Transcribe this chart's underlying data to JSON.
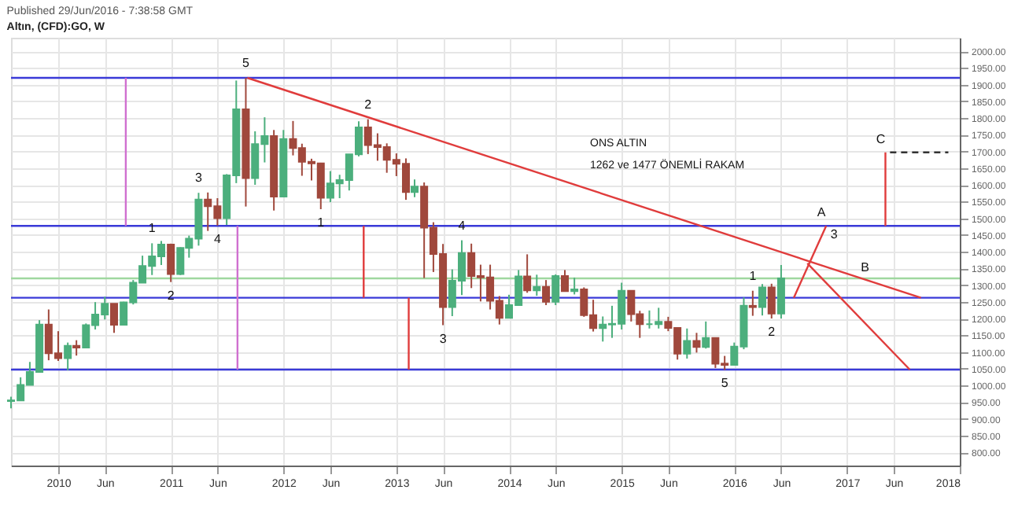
{
  "chart_data": {
    "type": "candlestick",
    "title": "Published 29/Jun/2016 - 7:38:58 GMT",
    "subtitle": "Altın, (CFD):GO, W",
    "x": [
      "2009-08",
      "2009-09",
      "2009-10",
      "2009-11",
      "2009-12",
      "2010-01",
      "2010-02",
      "2010-03",
      "2010-04",
      "2010-05",
      "2010-06",
      "2010-07",
      "2010-08",
      "2010-09",
      "2010-10",
      "2010-11",
      "2010-12",
      "2011-01",
      "2011-02",
      "2011-03",
      "2011-04",
      "2011-05",
      "2011-06",
      "2011-07",
      "2011-08",
      "2011-09",
      "2011-10",
      "2011-11",
      "2011-12",
      "2012-01",
      "2012-02",
      "2012-03",
      "2012-04",
      "2012-05",
      "2012-06",
      "2012-07",
      "2012-08",
      "2012-09",
      "2012-10",
      "2012-11",
      "2012-12",
      "2013-01",
      "2013-02",
      "2013-03",
      "2013-04",
      "2013-05",
      "2013-06",
      "2013-07",
      "2013-08",
      "2013-09",
      "2013-10",
      "2013-11",
      "2013-12",
      "2014-01",
      "2014-02",
      "2014-03",
      "2014-04",
      "2014-05",
      "2014-06",
      "2014-07",
      "2014-08",
      "2014-09",
      "2014-10",
      "2014-11",
      "2014-12",
      "2015-01",
      "2015-02",
      "2015-03",
      "2015-04",
      "2015-05",
      "2015-06",
      "2015-07",
      "2015-08",
      "2015-09",
      "2015-10",
      "2015-11",
      "2015-12",
      "2016-01",
      "2016-02",
      "2016-03",
      "2016-04",
      "2016-05",
      "2016-06"
    ],
    "ohlc": [
      [
        953,
        966,
        931,
        955
      ],
      [
        955,
        1024,
        954,
        1001
      ],
      [
        1001,
        1070,
        1001,
        1040
      ],
      [
        1040,
        1195,
        1040,
        1182
      ],
      [
        1182,
        1227,
        1075,
        1096
      ],
      [
        1096,
        1162,
        1073,
        1081
      ],
      [
        1081,
        1128,
        1045,
        1118
      ],
      [
        1118,
        1135,
        1089,
        1113
      ],
      [
        1113,
        1185,
        1113,
        1180
      ],
      [
        1180,
        1249,
        1167,
        1212
      ],
      [
        1212,
        1265,
        1197,
        1244
      ],
      [
        1244,
        1244,
        1157,
        1181
      ],
      [
        1181,
        1250,
        1181,
        1248
      ],
      [
        1248,
        1315,
        1242,
        1307
      ],
      [
        1307,
        1388,
        1306,
        1357
      ],
      [
        1357,
        1425,
        1330,
        1386
      ],
      [
        1386,
        1432,
        1360,
        1421
      ],
      [
        1421,
        1424,
        1309,
        1333
      ],
      [
        1333,
        1413,
        1330,
        1411
      ],
      [
        1411,
        1448,
        1382,
        1439
      ],
      [
        1439,
        1576,
        1418,
        1556
      ],
      [
        1556,
        1577,
        1462,
        1536
      ],
      [
        1536,
        1560,
        1478,
        1500
      ],
      [
        1500,
        1632,
        1480,
        1628
      ],
      [
        1628,
        1912,
        1605,
        1826
      ],
      [
        1826,
        1920,
        1535,
        1620
      ],
      [
        1620,
        1760,
        1600,
        1722
      ],
      [
        1722,
        1802,
        1667,
        1746
      ],
      [
        1746,
        1764,
        1523,
        1565
      ],
      [
        1565,
        1764,
        1565,
        1737
      ],
      [
        1737,
        1791,
        1688,
        1710
      ],
      [
        1710,
        1723,
        1627,
        1669
      ],
      [
        1669,
        1678,
        1613,
        1664
      ],
      [
        1664,
        1666,
        1527,
        1561
      ],
      [
        1561,
        1641,
        1548,
        1604
      ],
      [
        1604,
        1630,
        1560,
        1614
      ],
      [
        1614,
        1692,
        1583,
        1691
      ],
      [
        1691,
        1790,
        1685,
        1772
      ],
      [
        1772,
        1796,
        1692,
        1719
      ],
      [
        1719,
        1754,
        1672,
        1713
      ],
      [
        1713,
        1724,
        1636,
        1675
      ],
      [
        1675,
        1694,
        1626,
        1663
      ],
      [
        1663,
        1679,
        1555,
        1578
      ],
      [
        1578,
        1616,
        1563,
        1595
      ],
      [
        1595,
        1607,
        1321,
        1472
      ],
      [
        1472,
        1488,
        1339,
        1393
      ],
      [
        1393,
        1423,
        1180,
        1234
      ],
      [
        1234,
        1347,
        1207,
        1313
      ],
      [
        1313,
        1434,
        1270,
        1396
      ],
      [
        1396,
        1424,
        1291,
        1327
      ],
      [
        1327,
        1361,
        1251,
        1323
      ],
      [
        1323,
        1361,
        1227,
        1253
      ],
      [
        1253,
        1267,
        1182,
        1202
      ],
      [
        1202,
        1271,
        1202,
        1240
      ],
      [
        1240,
        1345,
        1240,
        1326
      ],
      [
        1326,
        1392,
        1277,
        1284
      ],
      [
        1284,
        1331,
        1268,
        1295
      ],
      [
        1295,
        1315,
        1240,
        1250
      ],
      [
        1250,
        1332,
        1240,
        1327
      ],
      [
        1327,
        1345,
        1280,
        1282
      ],
      [
        1282,
        1322,
        1272,
        1287
      ],
      [
        1287,
        1293,
        1205,
        1210
      ],
      [
        1210,
        1256,
        1161,
        1171
      ],
      [
        1171,
        1206,
        1131,
        1182
      ],
      [
        1182,
        1238,
        1142,
        1184
      ],
      [
        1184,
        1307,
        1167,
        1283
      ],
      [
        1283,
        1284,
        1191,
        1213
      ],
      [
        1213,
        1223,
        1142,
        1183
      ],
      [
        1183,
        1224,
        1170,
        1183
      ],
      [
        1183,
        1232,
        1170,
        1190
      ],
      [
        1190,
        1205,
        1162,
        1172
      ],
      [
        1172,
        1174,
        1077,
        1095
      ],
      [
        1095,
        1170,
        1080,
        1133
      ],
      [
        1133,
        1157,
        1098,
        1115
      ],
      [
        1115,
        1191,
        1110,
        1142
      ],
      [
        1142,
        1142,
        1052,
        1065
      ],
      [
        1065,
        1088,
        1046,
        1061
      ],
      [
        1061,
        1128,
        1060,
        1116
      ],
      [
        1116,
        1263,
        1108,
        1238
      ],
      [
        1238,
        1283,
        1208,
        1234
      ],
      [
        1234,
        1303,
        1209,
        1293
      ],
      [
        1293,
        1304,
        1200,
        1215
      ],
      [
        1215,
        1360,
        1200,
        1320
      ]
    ],
    "colors": [
      "#4caf7d",
      "#4caf7d",
      "#4caf7d",
      "#4caf7d",
      "#a0483c",
      "#a0483c",
      "#4caf7d",
      "#a0483c",
      "#4caf7d",
      "#4caf7d",
      "#4caf7d",
      "#a0483c",
      "#4caf7d",
      "#4caf7d",
      "#4caf7d",
      "#4caf7d",
      "#4caf7d",
      "#a0483c",
      "#4caf7d",
      "#4caf7d",
      "#4caf7d",
      "#a0483c",
      "#a0483c",
      "#4caf7d",
      "#4caf7d",
      "#a0483c",
      "#4caf7d",
      "#4caf7d",
      "#a0483c",
      "#4caf7d",
      "#a0483c",
      "#a0483c",
      "#a0483c",
      "#a0483c",
      "#4caf7d",
      "#4caf7d",
      "#4caf7d",
      "#4caf7d",
      "#a0483c",
      "#a0483c",
      "#a0483c",
      "#a0483c",
      "#a0483c",
      "#4caf7d",
      "#a0483c",
      "#a0483c",
      "#a0483c",
      "#4caf7d",
      "#4caf7d",
      "#a0483c",
      "#a0483c",
      "#a0483c",
      "#a0483c",
      "#4caf7d",
      "#4caf7d",
      "#a0483c",
      "#4caf7d",
      "#a0483c",
      "#4caf7d",
      "#a0483c",
      "#4caf7d",
      "#a0483c",
      "#a0483c",
      "#4caf7d",
      "#4caf7d",
      "#4caf7d",
      "#a0483c",
      "#a0483c",
      "#4caf7d",
      "#4caf7d",
      "#a0483c",
      "#a0483c",
      "#4caf7d",
      "#a0483c",
      "#4caf7d",
      "#a0483c",
      "#a0483c",
      "#4caf7d",
      "#4caf7d",
      "#a0483c",
      "#4caf7d",
      "#a0483c",
      "#4caf7d"
    ],
    "series": [
      {
        "type": "line",
        "color": "#e03c3c",
        "line_style": "solid",
        "x": [
          "2011-09-06",
          "2017-08-28"
        ],
        "values": [
          1920,
          1262
        ]
      },
      {
        "type": "line",
        "color": "#e03c3c",
        "line_style": "solid",
        "x": [
          "2016-07-12",
          "2016-10-25"
        ],
        "values": [
          1262,
          1477
        ]
      },
      {
        "type": "line",
        "color": "#e03c3c",
        "line_style": "solid",
        "x": [
          "2016-08-25",
          "2017-07-23"
        ],
        "values": [
          1365,
          1047
        ]
      },
      {
        "type": "line",
        "color": "#d070d0",
        "line_style": "solid",
        "x": [
          "2010-08-08",
          "2010-08-08"
        ],
        "values": [
          1920,
          1477
        ]
      },
      {
        "type": "line",
        "color": "#d070d0",
        "line_style": "solid",
        "x": [
          "2011-08-05",
          "2011-08-05"
        ],
        "values": [
          1477,
          1047
        ]
      },
      {
        "type": "line",
        "color": "#e03c3c",
        "line_style": "solid",
        "x": [
          "2012-09-17",
          "2012-09-17"
        ],
        "values": [
          1477,
          1262
        ]
      },
      {
        "type": "line",
        "color": "#e03c3c",
        "line_style": "solid",
        "x": [
          "2013-02-10",
          "2013-02-10"
        ],
        "values": [
          1262,
          1047
        ]
      },
      {
        "type": "line",
        "color": "#e03c3c",
        "line_style": "solid",
        "x": [
          "2017-05-05",
          "2017-05-05"
        ],
        "values": [
          1697,
          1477
        ]
      },
      {
        "type": "line",
        "color": "#333333",
        "line_style": "dashed",
        "x": [
          "2017-05-20",
          "2017-11-25"
        ],
        "values": [
          1697,
          1697
        ]
      }
    ],
    "ref_lines": [
      {
        "axis": "y",
        "value": 1920,
        "color": "#3a3ad8"
      },
      {
        "axis": "y",
        "value": 1477,
        "color": "#3a3ad8"
      },
      {
        "axis": "y",
        "value": 1262,
        "color": "#3a3ad8"
      },
      {
        "axis": "y",
        "value": 1047,
        "color": "#3a3ad8"
      },
      {
        "axis": "y",
        "value": 1320,
        "color": "#9fd89f"
      }
    ],
    "annotations": [
      {
        "text": "5",
        "x": "2011-09",
        "y": 1920
      },
      {
        "text": "2",
        "x": "2012-10",
        "y": 1796
      },
      {
        "text": "3",
        "x": "2011-04",
        "y": 1576
      },
      {
        "text": "4",
        "x": "2011-06",
        "y": 1478
      },
      {
        "text": "1",
        "x": "2012-05",
        "y": 1527
      },
      {
        "text": "1",
        "x": "2010-11",
        "y": 1425
      },
      {
        "text": "2",
        "x": "2011-01",
        "y": 1309
      },
      {
        "text": "4",
        "x": "2013-08",
        "y": 1434
      },
      {
        "text": "3",
        "x": "2013-06",
        "y": 1180
      },
      {
        "text": "1",
        "x": "2016-03",
        "y": 1283
      },
      {
        "text": "2",
        "x": "2016-05",
        "y": 1200
      },
      {
        "text": "5",
        "x": "2015-12",
        "y": 1046
      },
      {
        "text": "A",
        "x": "2016-10-25",
        "y": 1477
      },
      {
        "text": "3",
        "x": "2016-10-25",
        "y": 1477
      },
      {
        "text": "B",
        "x": "2017-03-15",
        "y": 1313
      },
      {
        "text": "C",
        "x": "2017-05-05",
        "y": 1697
      },
      "ONS ALTIN",
      "1262 ve 1477  ÖNEMLİ RAKAM"
    ],
    "xlim": [
      "2009-08-01",
      "2018-01-01"
    ],
    "xticks": [
      {
        "value": "2010-01-01",
        "label": "2010"
      },
      {
        "value": "2010-06-01",
        "label": "Jun"
      },
      {
        "value": "2011-01-01",
        "label": "2011"
      },
      {
        "value": "2011-06-01",
        "label": "Jun"
      },
      {
        "value": "2012-01-01",
        "label": "2012"
      },
      {
        "value": "2012-06-01",
        "label": "Jun"
      },
      {
        "value": "2013-01-01",
        "label": "2013"
      },
      {
        "value": "2013-06-01",
        "label": "Jun"
      },
      {
        "value": "2014-01-01",
        "label": "2014"
      },
      {
        "value": "2014-06-01",
        "label": "Jun"
      },
      {
        "value": "2015-01-01",
        "label": "2015"
      },
      {
        "value": "2015-06-01",
        "label": "Jun"
      },
      {
        "value": "2016-01-01",
        "label": "2016"
      },
      {
        "value": "2016-06-01",
        "label": "Jun"
      },
      {
        "value": "2017-01-01",
        "label": "2017"
      },
      {
        "value": "2017-06-01",
        "label": "Jun"
      },
      {
        "value": "2018-01-01",
        "label": "2018"
      }
    ],
    "ylim": [
      760,
      2040
    ],
    "yticks": [
      {
        "value": 800,
        "label": "800.00"
      },
      {
        "value": 850,
        "label": "850.00"
      },
      {
        "value": 900,
        "label": "900.00"
      },
      {
        "value": 950,
        "label": "950.00"
      },
      {
        "value": 1000,
        "label": "1000.00"
      },
      {
        "value": 1050,
        "label": "1050.00"
      },
      {
        "value": 1100,
        "label": "1100.00"
      },
      {
        "value": 1150,
        "label": "1150.00"
      },
      {
        "value": 1200,
        "label": "1200.00"
      },
      {
        "value": 1250,
        "label": "1250.00"
      },
      {
        "value": 1300,
        "label": "1300.00"
      },
      {
        "value": 1350,
        "label": "1350.00"
      },
      {
        "value": 1400,
        "label": "1400.00"
      },
      {
        "value": 1450,
        "label": "1450.00"
      },
      {
        "value": 1500,
        "label": "1500.00"
      },
      {
        "value": 1550,
        "label": "1550.00"
      },
      {
        "value": 1600,
        "label": "1600.00"
      },
      {
        "value": 1650,
        "label": "1650.00"
      },
      {
        "value": 1700,
        "label": "1700.00"
      },
      {
        "value": 1750,
        "label": "1750.00"
      },
      {
        "value": 1800,
        "label": "1800.00"
      },
      {
        "value": 1850,
        "label": "1850.00"
      },
      {
        "value": 1900,
        "label": "1900.00"
      },
      {
        "value": 1950,
        "label": "1950.00"
      },
      {
        "value": 2000,
        "label": "2000.00"
      }
    ],
    "grid": true
  }
}
